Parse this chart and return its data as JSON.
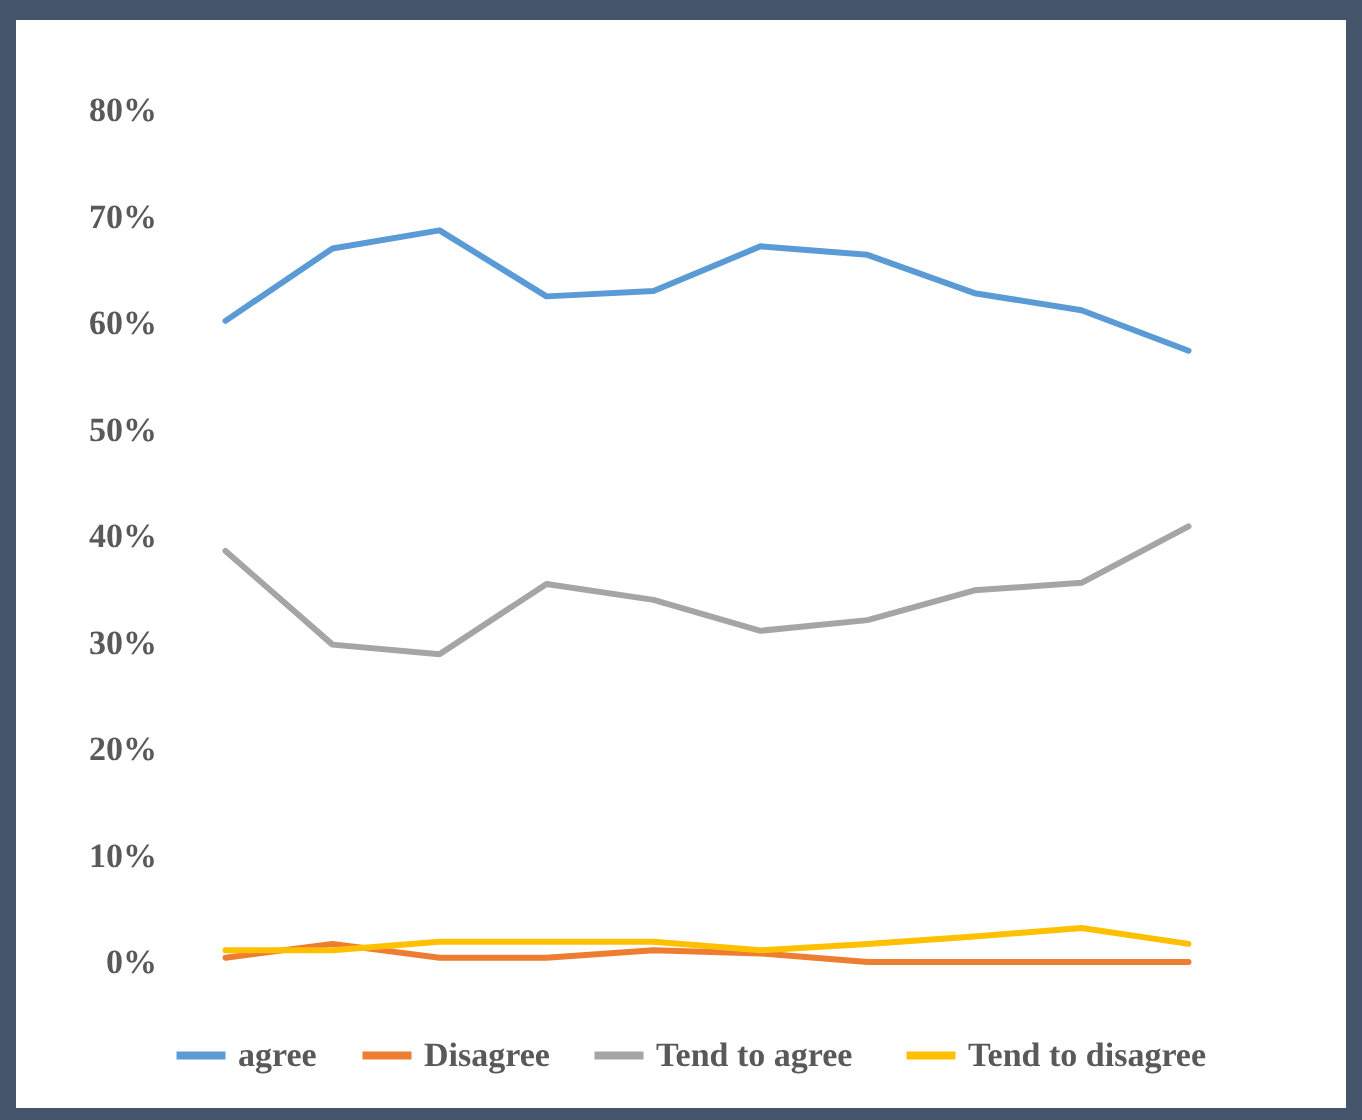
{
  "chart_data": {
    "type": "line",
    "categories": [
      null,
      null,
      null,
      null,
      null,
      null,
      null,
      null,
      null,
      null
    ],
    "series": [
      {
        "name": "agree",
        "color": "#5b9bd5",
        "values": [
          60.2,
          67.0,
          68.7,
          62.5,
          63.0,
          67.2,
          66.4,
          62.8,
          61.2,
          57.4
        ]
      },
      {
        "name": "Disagree",
        "color": "#ed7d31",
        "values": [
          0.4,
          1.7,
          0.4,
          0.4,
          1.1,
          0.8,
          0,
          0,
          0,
          0
        ]
      },
      {
        "name": "Tend  to agree",
        "color": "#a5a5a5",
        "values": [
          38.6,
          29.8,
          28.9,
          35.5,
          34.0,
          31.1,
          32.1,
          34.9,
          35.6,
          40.9
        ]
      },
      {
        "name": "Tend  to disagree",
        "color": "#ffc000",
        "values": [
          1.1,
          1.1,
          1.9,
          1.9,
          1.9,
          1.1,
          1.7,
          2.4,
          3.2,
          1.7
        ]
      }
    ],
    "ylim": [
      0,
      80
    ],
    "yticks": [
      {
        "value": 0,
        "label": "0%"
      },
      {
        "value": 10,
        "label": "10%"
      },
      {
        "value": 20,
        "label": "20%"
      },
      {
        "value": 30,
        "label": "30%"
      },
      {
        "value": 40,
        "label": "40%"
      },
      {
        "value": 50,
        "label": "50%"
      },
      {
        "value": 60,
        "label": "60%"
      },
      {
        "value": 70,
        "label": "70%"
      },
      {
        "value": 80,
        "label": "80%"
      }
    ],
    "tick_labels": "y",
    "grid": false,
    "legend": "bottom",
    "marker": "none",
    "line_style": "solid"
  }
}
